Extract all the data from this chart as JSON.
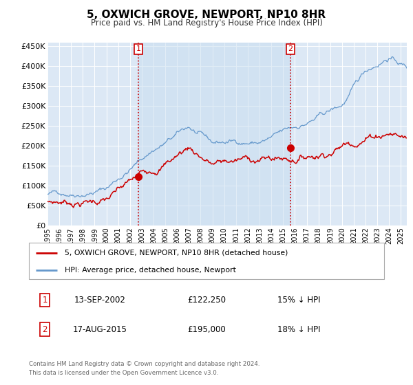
{
  "title": "5, OXWICH GROVE, NEWPORT, NP10 8HR",
  "subtitle": "Price paid vs. HM Land Registry's House Price Index (HPI)",
  "xlim": [
    1995.0,
    2025.5
  ],
  "ylim": [
    0,
    460000
  ],
  "yticks": [
    0,
    50000,
    100000,
    150000,
    200000,
    250000,
    300000,
    350000,
    400000,
    450000
  ],
  "ytick_labels": [
    "£0",
    "£50K",
    "£100K",
    "£150K",
    "£200K",
    "£250K",
    "£300K",
    "£350K",
    "£400K",
    "£450K"
  ],
  "bg_color": "#dce8f5",
  "grid_color": "#ffffff",
  "sale1_x": 2002.71,
  "sale1_y": 122250,
  "sale2_x": 2015.63,
  "sale2_y": 195000,
  "vline1_x": 2002.71,
  "vline2_x": 2015.63,
  "legend_line1": "5, OXWICH GROVE, NEWPORT, NP10 8HR (detached house)",
  "legend_line2": "HPI: Average price, detached house, Newport",
  "annot1_num": "1",
  "annot1_date": "13-SEP-2002",
  "annot1_price": "£122,250",
  "annot1_hpi": "15% ↓ HPI",
  "annot2_num": "2",
  "annot2_date": "17-AUG-2015",
  "annot2_price": "£195,000",
  "annot2_hpi": "18% ↓ HPI",
  "footer1": "Contains HM Land Registry data © Crown copyright and database right 2024.",
  "footer2": "This data is licensed under the Open Government Licence v3.0.",
  "line_red_color": "#cc0000",
  "line_blue_color": "#6699cc",
  "marker_color": "#cc0000",
  "box_color": "#cc0000"
}
